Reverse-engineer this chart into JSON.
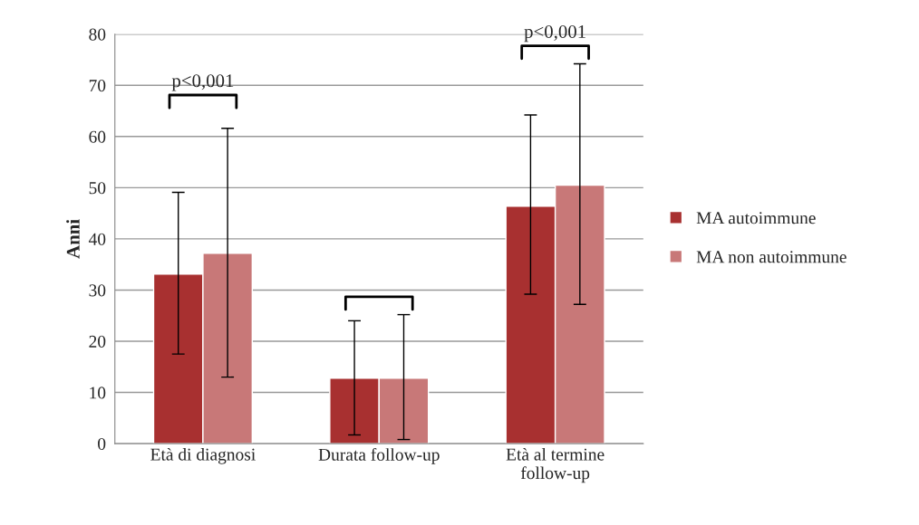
{
  "chart_data": {
    "type": "bar",
    "ylabel": "Anni",
    "categories": [
      "Età di diagnosi",
      "Durata follow-up",
      "Età al termine\nfollow-up"
    ],
    "series": [
      {
        "name": "MA autoimmune",
        "color": "#a83030",
        "values": [
          33.1,
          12.8,
          46.4
        ],
        "errors": [
          [
            17.5,
            49.1
          ],
          [
            1.7,
            24.0
          ],
          [
            29.2,
            64.2
          ]
        ]
      },
      {
        "name": "MA non autoimmune",
        "color": "#c87878",
        "values": [
          37.2,
          12.8,
          50.5
        ],
        "errors": [
          [
            13.0,
            61.6
          ],
          [
            0.8,
            25.2
          ],
          [
            27.2,
            74.2
          ]
        ]
      }
    ],
    "annotations": [
      "p<0,001",
      "p<0,001"
    ],
    "ylim": [
      0,
      80
    ],
    "yticks": [
      0,
      10,
      20,
      30,
      40,
      50,
      60,
      70,
      80
    ],
    "grid": "y",
    "legend": "right"
  }
}
